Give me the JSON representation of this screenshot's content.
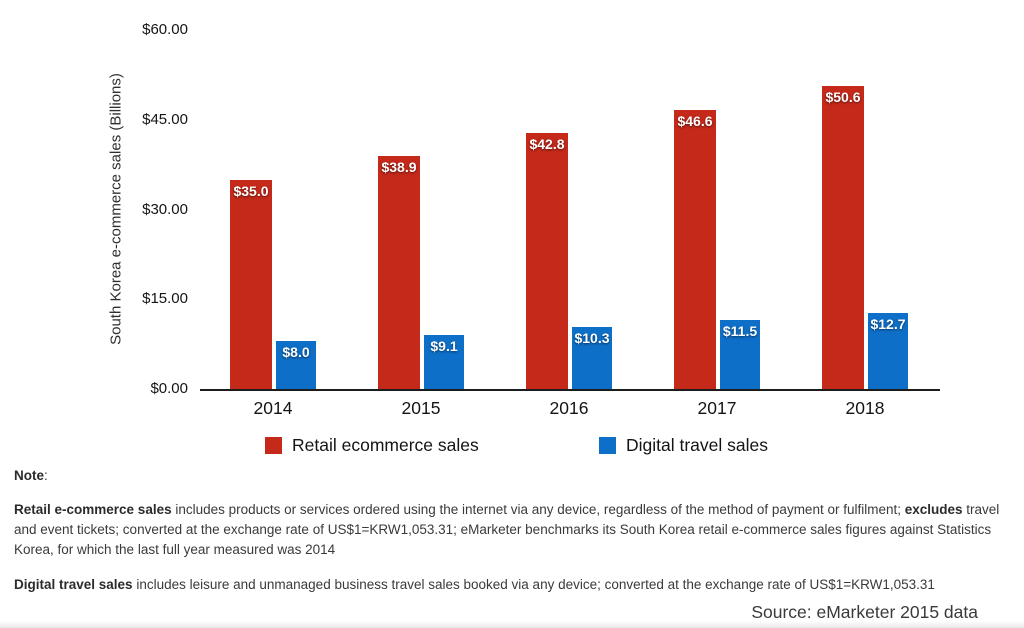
{
  "chart_data": {
    "type": "bar",
    "title": "",
    "xlabel": "",
    "ylabel": "South Korea e-commerce sales (Billions)",
    "categories": [
      "2014",
      "2015",
      "2016",
      "2017",
      "2018"
    ],
    "series": [
      {
        "name": "Retail ecommerce sales",
        "color": "#c5291a",
        "values": [
          35.0,
          38.9,
          42.8,
          46.6,
          50.6
        ],
        "labels": [
          "$35.0",
          "$38.9",
          "$42.8",
          "$46.6",
          "$50.6"
        ]
      },
      {
        "name": "Digital travel sales",
        "color": "#0e6fc8",
        "values": [
          8.0,
          9.1,
          10.3,
          11.5,
          12.7
        ],
        "labels": [
          "$8.0",
          "$9.1",
          "$10.3",
          "$11.5",
          "$12.7"
        ]
      }
    ],
    "ylim": [
      0,
      60
    ],
    "yticks": [
      {
        "value": 60,
        "label": "$60.00"
      },
      {
        "value": 45,
        "label": "$45.00"
      },
      {
        "value": 30,
        "label": "$30.00"
      },
      {
        "value": 15,
        "label": "$15.00"
      },
      {
        "value": 0,
        "label": "$0.00"
      }
    ],
    "grid": false,
    "legend_position": "bottom"
  },
  "notes": {
    "label": "Note",
    "colon": ":",
    "p1": {
      "bold1": "Retail e-commerce sales",
      "text1": " includes products or services ordered using the internet via any device, regardless of the method of payment or fulfilment; ",
      "bold2": "excludes",
      "text2": " travel and event tickets; converted at the exchange rate of US$1=KRW1,053.31; eMarketer benchmarks its South Korea retail e-commerce sales figures against Statistics Korea, for which the last full year measured was 2014"
    },
    "p2": {
      "bold1": "Digital travel sales",
      "text1": " includes leisure and unmanaged business travel sales booked via any device; converted at the exchange rate of US$1=KRW1,053.31"
    }
  },
  "source": {
    "text": "Source: eMarketer 2015 data"
  }
}
